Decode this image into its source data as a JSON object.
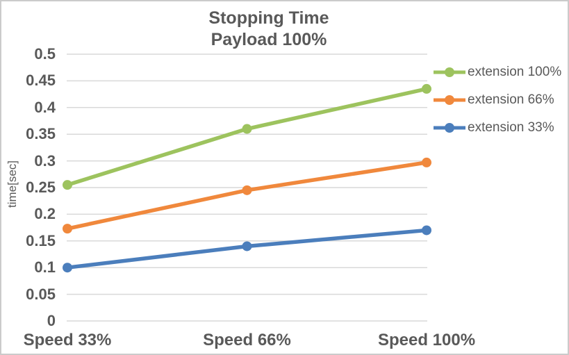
{
  "window": {
    "background": "#FFFFFF",
    "border_color": "#CBCBCB",
    "text_color": "#595959",
    "gridline_color": "#D9D9D9"
  },
  "chart_data": {
    "type": "line",
    "title": "Stopping Time",
    "subtitle": "Payload 100%",
    "categories": [
      "Speed 33%",
      "Speed 66%",
      "Speed 100%"
    ],
    "series": [
      {
        "name": "extension 100%",
        "color": "#9DC35E",
        "values": [
          0.255,
          0.36,
          0.435
        ]
      },
      {
        "name": "extension 66%",
        "color": "#F0883C",
        "values": [
          0.173,
          0.245,
          0.297
        ]
      },
      {
        "name": "extension 33%",
        "color": "#4B7EBC",
        "values": [
          0.1,
          0.14,
          0.17
        ]
      }
    ],
    "xlabel": "",
    "ylabel": "time[sec]",
    "ylim": [
      0,
      0.5
    ],
    "ytick_step": 0.05,
    "ytick_labels": [
      "0",
      "0.05",
      "0.1",
      "0.15",
      "0.2",
      "0.25",
      "0.3",
      "0.35",
      "0.4",
      "0.45",
      "0.5"
    ],
    "grid": "horizontal",
    "legend_position": "right",
    "marker": "circle"
  }
}
